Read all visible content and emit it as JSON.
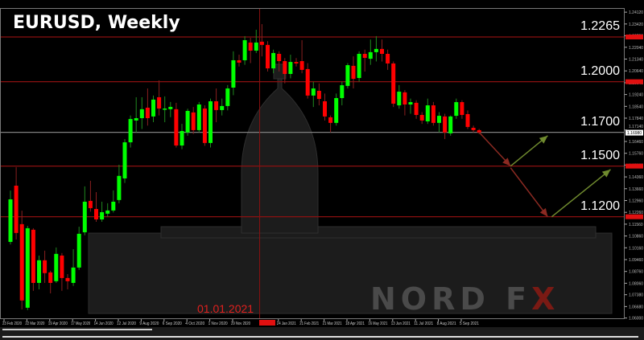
{
  "title": "EURUSD, Weekly",
  "highlight_date": "01.01.2021",
  "logo": "NORD FX",
  "colors": {
    "up": "#00ff00",
    "down": "#ff0000",
    "level_line": "#8b1010",
    "grid_line": "#808080",
    "arrow_down": "#8b2a22",
    "arrow_up": "#6f8a2e",
    "background": "#000000"
  },
  "chart_data": {
    "type": "candlestick",
    "title": "EURUSD, Weekly",
    "ylim": [
      1.06,
      1.245
    ],
    "y_ticks": [
      "1.24120",
      "1.23420",
      "1.22720",
      "1.22040",
      "1.21340",
      "1.20640",
      "1.19940",
      "1.19240",
      "1.18540",
      "1.17840",
      "1.17140",
      "1.16460",
      "1.15760",
      "1.15060",
      "1.14360",
      "1.13660",
      "1.12960",
      "1.12260",
      "1.11560",
      "1.10860",
      "1.10160",
      "1.09460",
      "1.08760",
      "1.08060",
      "1.07380",
      "1.06680",
      "1.06000"
    ],
    "current_price": "1.16980",
    "x_labels": [
      {
        "i": 0,
        "t": "23 Feb 2020"
      },
      {
        "i": 4,
        "t": "22 Mar 2020"
      },
      {
        "i": 8,
        "t": "19 Apr 2020"
      },
      {
        "i": 12,
        "t": "17 May 2020"
      },
      {
        "i": 16,
        "t": "14 Jun 2020"
      },
      {
        "i": 20,
        "t": "12 Jul 2020"
      },
      {
        "i": 24,
        "t": "9 Aug 2020"
      },
      {
        "i": 28,
        "t": "6 Sep 2020"
      },
      {
        "i": 32,
        "t": "4 Oct 2020"
      },
      {
        "i": 36,
        "t": "1 Nov 2020"
      },
      {
        "i": 40,
        "t": "29 Nov 2020"
      },
      {
        "i": 48,
        "t": "24 Jan 2021"
      },
      {
        "i": 52,
        "t": "21 Feb 2021"
      },
      {
        "i": 56,
        "t": "21 Mar 2021"
      },
      {
        "i": 60,
        "t": "18 Apr 2021"
      },
      {
        "i": 64,
        "t": "16 May 2021"
      },
      {
        "i": 68,
        "t": "13 Jun 2021"
      },
      {
        "i": 72,
        "t": "11 Jul 2021"
      },
      {
        "i": 76,
        "t": "8 Aug 2021"
      },
      {
        "i": 80,
        "t": "5 Sep 2021"
      }
    ],
    "levels": [
      {
        "value": 1.2265,
        "label": "1.2265",
        "style": "red"
      },
      {
        "value": 1.2,
        "label": "1.2000",
        "style": "red"
      },
      {
        "value": 1.17,
        "label": "1.1700",
        "style": "grey"
      },
      {
        "value": 1.15,
        "label": "1.1500",
        "style": "red"
      },
      {
        "value": 1.12,
        "label": "1.1200",
        "style": "red"
      }
    ],
    "forecast_arrows": [
      {
        "from": [
          82,
          1.17
        ],
        "to": [
          87.5,
          1.15
        ],
        "dir": "down"
      },
      {
        "from": [
          87.5,
          1.15
        ],
        "to": [
          94,
          1.168
        ],
        "dir": "up"
      },
      {
        "from": [
          87.5,
          1.149
        ],
        "to": [
          94,
          1.12
        ],
        "dir": "down"
      },
      {
        "from": [
          94.7,
          1.12
        ],
        "to": [
          105,
          1.148
        ],
        "dir": "up"
      }
    ],
    "ohlc": [
      [
        1.1051,
        1.1355,
        1.1036,
        1.1303
      ],
      [
        1.1384,
        1.1494,
        1.1065,
        1.1104
      ],
      [
        1.1156,
        1.1236,
        1.0651,
        1.0704
      ],
      [
        1.0661,
        1.1146,
        1.0647,
        1.1132
      ],
      [
        1.1123,
        1.1132,
        1.0761,
        1.0808
      ],
      [
        1.0808,
        1.097,
        1.077,
        1.0942
      ],
      [
        1.0942,
        1.0999,
        1.0808,
        1.0866
      ],
      [
        1.087,
        1.088,
        1.0746,
        1.0808
      ],
      [
        1.0818,
        1.1018,
        1.0808,
        1.098
      ],
      [
        1.097,
        1.0985,
        1.0761,
        1.0837
      ],
      [
        1.0837,
        1.086,
        1.077,
        1.0818
      ],
      [
        1.0808,
        1.1008,
        1.079,
        1.0899
      ],
      [
        1.0899,
        1.1141,
        1.0885,
        1.1099
      ],
      [
        1.1108,
        1.138,
        1.109,
        1.1289
      ],
      [
        1.1294,
        1.1413,
        1.123,
        1.1251
      ],
      [
        1.1246,
        1.1346,
        1.117,
        1.1184
      ],
      [
        1.1184,
        1.1289,
        1.117,
        1.1227
      ],
      [
        1.1218,
        1.128,
        1.12,
        1.1237
      ],
      [
        1.1237,
        1.1356,
        1.1225,
        1.1289
      ],
      [
        1.1299,
        1.1508,
        1.128,
        1.1442
      ],
      [
        1.1427,
        1.166,
        1.14,
        1.1641
      ],
      [
        1.1641,
        1.18,
        1.161,
        1.1779
      ],
      [
        1.177,
        1.1908,
        1.17,
        1.1784
      ],
      [
        1.1784,
        1.1908,
        1.172,
        1.1837
      ],
      [
        1.1846,
        1.196,
        1.174,
        1.1784
      ],
      [
        1.1794,
        1.1918,
        1.176,
        1.1894
      ],
      [
        1.1908,
        1.2008,
        1.18,
        1.1841
      ],
      [
        1.1837,
        1.1913,
        1.176,
        1.1841
      ],
      [
        1.1837,
        1.188,
        1.179,
        1.1851
      ],
      [
        1.1837,
        1.1875,
        1.161,
        1.1622
      ],
      [
        1.1622,
        1.175,
        1.16,
        1.1708
      ],
      [
        1.1699,
        1.184,
        1.168,
        1.1827
      ],
      [
        1.1818,
        1.185,
        1.169,
        1.1713
      ],
      [
        1.1713,
        1.188,
        1.17,
        1.1865
      ],
      [
        1.1841,
        1.186,
        1.162,
        1.1637
      ],
      [
        1.1637,
        1.19,
        1.161,
        1.1884
      ],
      [
        1.1884,
        1.196,
        1.176,
        1.1832
      ],
      [
        1.1832,
        1.19,
        1.18,
        1.1856
      ],
      [
        1.1856,
        1.198,
        1.183,
        1.196
      ],
      [
        1.1965,
        1.218,
        1.192,
        1.2127
      ],
      [
        1.2127,
        1.216,
        1.209,
        1.2113
      ],
      [
        1.2127,
        1.227,
        1.21,
        1.2246
      ],
      [
        1.2232,
        1.226,
        1.211,
        1.2184
      ],
      [
        1.2184,
        1.2308,
        1.217,
        1.2232
      ],
      [
        1.2237,
        1.2341,
        1.215,
        1.2218
      ],
      [
        1.2218,
        1.224,
        1.206,
        1.2079
      ],
      [
        1.2079,
        1.219,
        1.205,
        1.217
      ],
      [
        1.2165,
        1.218,
        1.206,
        1.2122
      ],
      [
        1.2122,
        1.214,
        1.199,
        1.2046
      ],
      [
        1.2046,
        1.216,
        1.202,
        1.2117
      ],
      [
        1.2117,
        1.214,
        1.209,
        1.2108
      ],
      [
        1.2122,
        1.2246,
        1.205,
        1.207
      ],
      [
        1.2075,
        1.211,
        1.19,
        1.1918
      ],
      [
        1.1918,
        1.2,
        1.185,
        1.196
      ],
      [
        1.1946,
        1.199,
        1.186,
        1.1898
      ],
      [
        1.1884,
        1.193,
        1.177,
        1.1794
      ],
      [
        1.1789,
        1.18,
        1.17,
        1.1756
      ],
      [
        1.1756,
        1.193,
        1.174,
        1.1903
      ],
      [
        1.1903,
        1.2,
        1.186,
        1.1979
      ],
      [
        1.1975,
        1.211,
        1.196,
        1.2098
      ],
      [
        1.2094,
        1.215,
        1.196,
        1.2017
      ],
      [
        1.2022,
        1.218,
        1.2,
        1.2165
      ],
      [
        1.2165,
        1.219,
        1.206,
        1.2141
      ],
      [
        1.2136,
        1.225,
        1.21,
        1.2175
      ],
      [
        1.2175,
        1.227,
        1.212,
        1.2194
      ],
      [
        1.2194,
        1.225,
        1.212,
        1.2165
      ],
      [
        1.2165,
        1.219,
        1.207,
        1.2108
      ],
      [
        1.2108,
        1.212,
        1.185,
        1.187
      ],
      [
        1.186,
        1.198,
        1.184,
        1.1941
      ],
      [
        1.1937,
        1.195,
        1.18,
        1.1865
      ],
      [
        1.1865,
        1.19,
        1.181,
        1.1879
      ],
      [
        1.1875,
        1.189,
        1.178,
        1.1803
      ],
      [
        1.1803,
        1.182,
        1.175,
        1.177
      ],
      [
        1.1765,
        1.19,
        1.175,
        1.186
      ],
      [
        1.186,
        1.188,
        1.174,
        1.1756
      ],
      [
        1.1756,
        1.182,
        1.17,
        1.1798
      ],
      [
        1.1794,
        1.181,
        1.166,
        1.1699
      ],
      [
        1.1694,
        1.18,
        1.168,
        1.1794
      ],
      [
        1.1798,
        1.19,
        1.178,
        1.1879
      ],
      [
        1.1879,
        1.189,
        1.178,
        1.1803
      ],
      [
        1.1808,
        1.183,
        1.172,
        1.1732
      ],
      [
        1.1727,
        1.174,
        1.17,
        1.1713
      ],
      [
        1.1713,
        1.172,
        1.169,
        1.1699
      ]
    ],
    "highlight_index": 43.6,
    "grid": false,
    "legend": "none"
  }
}
